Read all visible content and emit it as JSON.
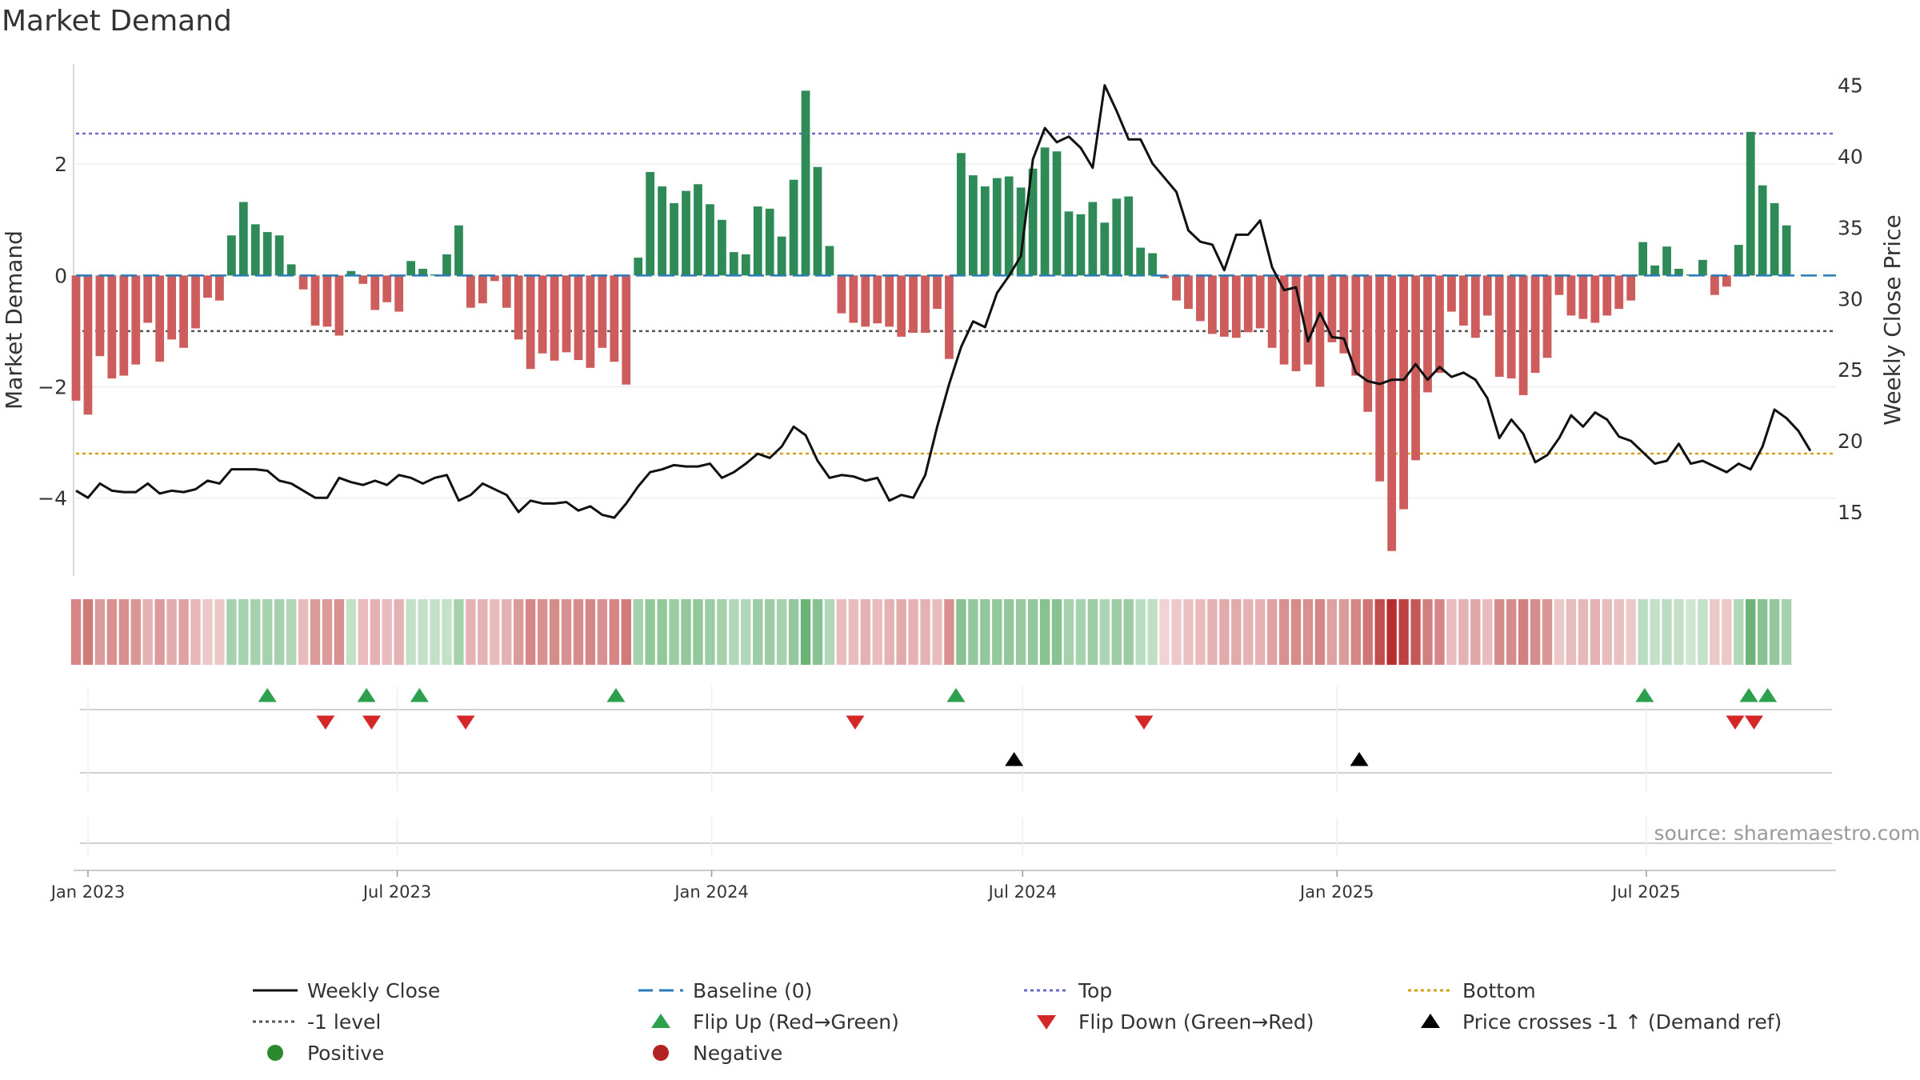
{
  "chart_data": {
    "type": "bar",
    "title": "Market Demand",
    "ylabel_left": "Market Demand",
    "ylabel_right": "Weekly Close Price",
    "ylim_left": [
      -5.4,
      3.8
    ],
    "ylim_right": [
      10.5,
      46.5
    ],
    "left_ticks": [
      2,
      0,
      -2,
      -4
    ],
    "left_tick_labels": [
      "2",
      "0",
      "−2",
      "−4"
    ],
    "right_ticks": [
      45,
      40,
      35,
      30,
      25,
      20,
      15
    ],
    "x_range": [
      "2022-12-25",
      "2025-10-20"
    ],
    "x_ticks": [
      {
        "label": "Jan 2023",
        "date": "2023-01-01"
      },
      {
        "label": "Jul 2023",
        "date": "2023-07-01"
      },
      {
        "label": "Jan 2024",
        "date": "2024-01-01"
      },
      {
        "label": "Jul 2024",
        "date": "2024-07-01"
      },
      {
        "label": "Jan 2025",
        "date": "2025-01-01"
      },
      {
        "label": "Jul 2025",
        "date": "2025-07-01"
      }
    ],
    "start_date": "2022-12-25",
    "week_days": 7,
    "reference_lines": {
      "top": 2.55,
      "bottom": -3.2,
      "minus_one": -1,
      "baseline": 0
    },
    "demand": [
      -2.25,
      -2.5,
      -1.45,
      -1.85,
      -1.8,
      -1.6,
      -0.85,
      -1.55,
      -1.15,
      -1.3,
      -0.95,
      -0.4,
      -0.45,
      0.72,
      1.32,
      0.92,
      0.78,
      0.72,
      0.2,
      -0.25,
      -0.9,
      -0.92,
      -1.08,
      0.08,
      -0.15,
      -0.62,
      -0.48,
      -0.65,
      0.26,
      0.12,
      0.02,
      0.38,
      0.9,
      -0.58,
      -0.5,
      -0.1,
      -0.58,
      -1.15,
      -1.68,
      -1.4,
      -1.53,
      -1.38,
      -1.52,
      -1.66,
      -1.3,
      -1.55,
      -1.96,
      0.32,
      1.86,
      1.6,
      1.3,
      1.52,
      1.64,
      1.28,
      1.0,
      0.42,
      0.38,
      1.24,
      1.2,
      0.7,
      1.72,
      3.32,
      1.95,
      0.53,
      -0.68,
      -0.85,
      -0.92,
      -0.86,
      -0.92,
      -1.1,
      -1.03,
      -1.03,
      -0.6,
      -1.5,
      2.2,
      1.8,
      1.6,
      1.75,
      1.78,
      1.58,
      1.92,
      2.3,
      2.23,
      1.15,
      1.1,
      1.32,
      0.95,
      1.38,
      1.42,
      0.5,
      0.4,
      -0.05,
      -0.45,
      -0.6,
      -0.82,
      -1.05,
      -1.1,
      -1.12,
      -1.02,
      -0.95,
      -1.3,
      -1.6,
      -1.72,
      -1.6,
      -2.0,
      -1.2,
      -1.4,
      -1.8,
      -2.45,
      -3.7,
      -4.95,
      -4.2,
      -3.32,
      -2.1,
      -1.75,
      -0.65,
      -0.9,
      -1.12,
      -0.72,
      -1.82,
      -1.85,
      -2.15,
      -1.75,
      -1.48,
      -0.35,
      -0.72,
      -0.78,
      -0.85,
      -0.72,
      -0.6,
      -0.45,
      0.6,
      0.18,
      0.52,
      0.12,
      0.02,
      0.28,
      -0.35,
      -0.2,
      0.55,
      2.58,
      1.62,
      1.3,
      0.9
    ],
    "close": [
      16.5,
      16.0,
      17.0,
      16.5,
      16.4,
      16.4,
      17.0,
      16.3,
      16.5,
      16.4,
      16.6,
      17.2,
      17.0,
      18.0,
      18.0,
      18.0,
      17.9,
      17.2,
      17.0,
      16.5,
      16.0,
      16.0,
      17.4,
      17.1,
      16.9,
      17.2,
      16.9,
      17.6,
      17.4,
      17.0,
      17.4,
      17.6,
      15.8,
      16.2,
      17.0,
      16.6,
      16.2,
      15.0,
      15.8,
      15.6,
      15.6,
      15.7,
      15.1,
      15.4,
      14.8,
      14.6,
      15.6,
      16.8,
      17.8,
      18.0,
      18.3,
      18.2,
      18.2,
      18.4,
      17.4,
      17.8,
      18.4,
      19.1,
      18.8,
      19.6,
      21.0,
      20.4,
      18.6,
      17.4,
      17.6,
      17.5,
      17.2,
      17.4,
      15.8,
      16.2,
      16.0,
      17.6,
      21.0,
      24.0,
      26.6,
      28.4,
      28.0,
      30.4,
      31.6,
      33.0,
      39.8,
      42.0,
      41.0,
      41.4,
      40.6,
      39.2,
      45.0,
      43.2,
      41.2,
      41.2,
      39.5,
      38.5,
      37.5,
      34.8,
      34.0,
      33.8,
      32.0,
      34.5,
      34.5,
      35.5,
      32.2,
      30.6,
      30.8,
      27.0,
      29.0,
      27.3,
      27.2,
      24.8,
      24.2,
      24.0,
      24.3,
      24.3,
      25.4,
      24.3,
      25.2,
      24.5,
      24.8,
      24.3,
      23.0,
      20.2,
      21.5,
      20.5,
      18.5,
      19.0,
      20.2,
      21.8,
      21.0,
      22.0,
      21.5,
      20.3,
      20.0,
      19.2,
      18.4,
      18.6,
      19.8,
      18.4,
      18.6,
      18.2,
      17.8,
      18.4,
      18.0,
      19.6,
      22.2,
      21.6,
      20.7,
      19.3
    ],
    "heat_alphas": [
      0.55,
      0.6,
      0.45,
      0.5,
      0.5,
      0.48,
      0.35,
      0.45,
      0.38,
      0.42,
      0.32,
      0.25,
      0.25,
      0.45,
      0.45,
      0.45,
      0.45,
      0.45,
      0.4,
      0.3,
      0.45,
      0.45,
      0.5,
      0.3,
      0.3,
      0.35,
      0.3,
      0.35,
      0.3,
      0.3,
      0.3,
      0.3,
      0.45,
      0.35,
      0.35,
      0.3,
      0.35,
      0.45,
      0.55,
      0.5,
      0.52,
      0.5,
      0.52,
      0.55,
      0.5,
      0.55,
      0.6,
      0.45,
      0.55,
      0.55,
      0.5,
      0.55,
      0.55,
      0.5,
      0.45,
      0.4,
      0.4,
      0.5,
      0.5,
      0.45,
      0.55,
      0.75,
      0.6,
      0.4,
      0.3,
      0.3,
      0.35,
      0.3,
      0.35,
      0.38,
      0.35,
      0.35,
      0.3,
      0.5,
      0.6,
      0.55,
      0.55,
      0.55,
      0.55,
      0.52,
      0.55,
      0.6,
      0.6,
      0.45,
      0.45,
      0.5,
      0.42,
      0.5,
      0.5,
      0.35,
      0.32,
      0.2,
      0.25,
      0.28,
      0.3,
      0.35,
      0.38,
      0.38,
      0.35,
      0.35,
      0.42,
      0.5,
      0.52,
      0.5,
      0.55,
      0.42,
      0.45,
      0.55,
      0.62,
      0.8,
      0.95,
      0.85,
      0.75,
      0.58,
      0.55,
      0.3,
      0.35,
      0.4,
      0.3,
      0.52,
      0.52,
      0.58,
      0.52,
      0.48,
      0.25,
      0.3,
      0.32,
      0.35,
      0.3,
      0.28,
      0.25,
      0.35,
      0.3,
      0.35,
      0.3,
      0.25,
      0.3,
      0.25,
      0.25,
      0.4,
      0.75,
      0.6,
      0.55,
      0.45
    ],
    "flip_up_dates": [
      "2023-04-16",
      "2023-06-13",
      "2023-07-14",
      "2023-11-06",
      "2024-05-23",
      "2025-06-30",
      "2025-08-30",
      "2025-09-10"
    ],
    "flip_down_dates": [
      "2023-05-20",
      "2023-06-16",
      "2023-08-10",
      "2024-03-25",
      "2024-09-10",
      "2025-08-22",
      "2025-09-02"
    ],
    "price_cross_dates": [
      "2024-06-26",
      "2025-01-14"
    ],
    "source_text": "source: sharemaestro.com",
    "legend": [
      {
        "label": "Weekly Close",
        "kind": "line-solid",
        "color": "#111111"
      },
      {
        "label": "Baseline (0)",
        "kind": "line-dash",
        "color": "#2a7ab8"
      },
      {
        "label": "Top",
        "kind": "line-dot",
        "color": "#6a6ad0"
      },
      {
        "label": "Bottom",
        "kind": "line-dot",
        "color": "#d4a017"
      },
      {
        "label": "-1 level",
        "kind": "line-dot",
        "color": "#555555"
      },
      {
        "label": "Flip Up (Red→Green)",
        "kind": "tri-up",
        "color": "#2ca04c"
      },
      {
        "label": "Flip Down (Green→Red)",
        "kind": "tri-down",
        "color": "#d62728"
      },
      {
        "label": "Price crosses -1 ↑ (Demand ref)",
        "kind": "tri-up",
        "color": "#000000"
      },
      {
        "label": "Positive",
        "kind": "dot",
        "color": "#2b8a2b"
      },
      {
        "label": "Negative",
        "kind": "dot",
        "color": "#b22222"
      }
    ]
  },
  "colors": {
    "positive_bar": "#2e8b57",
    "negative_bar": "#cd5c5c",
    "heat_positive": "#3a9a4a",
    "heat_negative": "#b22222",
    "baseline": "#2a7ab8",
    "top": "#6a6ad0",
    "bottom": "#d4a017",
    "minus_one": "#555555",
    "close_line": "#111111"
  }
}
